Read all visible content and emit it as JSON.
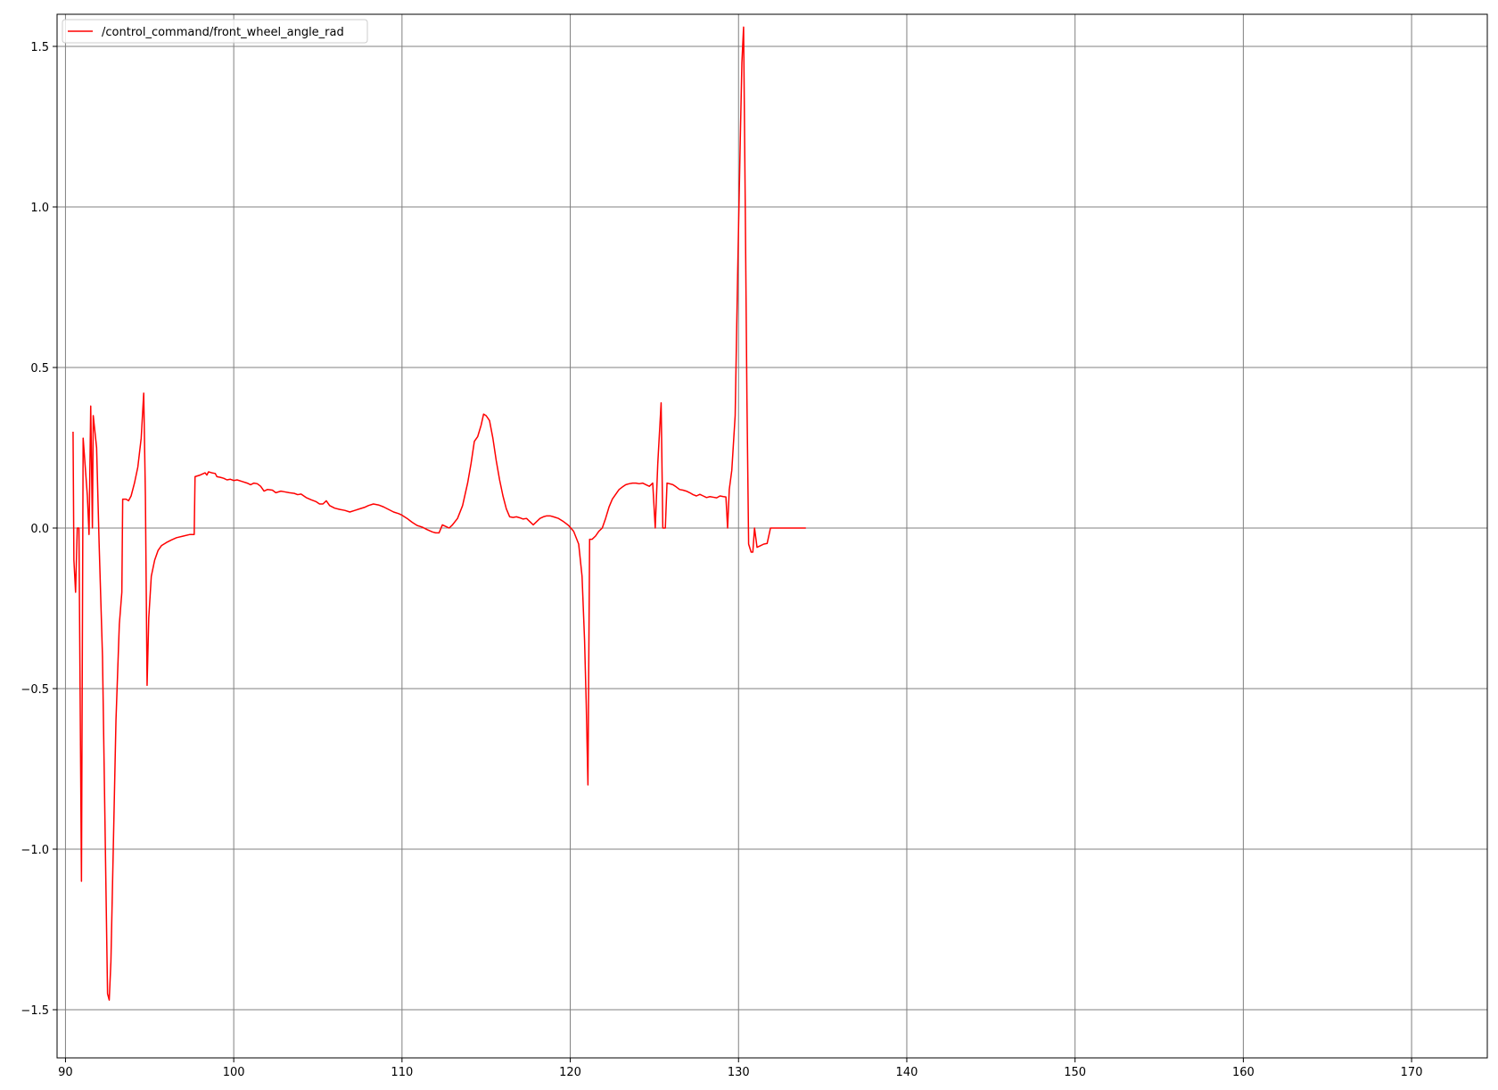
{
  "chart_data": {
    "type": "line",
    "title": "",
    "xlabel": "",
    "ylabel": "",
    "xlim": [
      89.5,
      174.5
    ],
    "ylim": [
      -1.65,
      1.6
    ],
    "xticks": [
      90,
      100,
      110,
      120,
      130,
      140,
      150,
      160,
      170
    ],
    "yticks": [
      -1.5,
      -1.0,
      -0.5,
      0.0,
      0.5,
      1.0,
      1.5
    ],
    "xtick_labels": [
      "90",
      "100",
      "110",
      "120",
      "130",
      "140",
      "150",
      "160",
      "170"
    ],
    "ytick_labels": [
      "−1.5",
      "−1.0",
      "−0.5",
      "0.0",
      "0.5",
      "1.0",
      "1.5"
    ],
    "grid": true,
    "legend_position": "top-left",
    "series": [
      {
        "name": "/control_command/front_wheel_angle_rad",
        "color": "#ff0000",
        "points": [
          [
            90.45,
            0.3
          ],
          [
            90.5,
            -0.1
          ],
          [
            90.6,
            -0.2
          ],
          [
            90.7,
            0.0
          ],
          [
            90.8,
            0.0
          ],
          [
            90.95,
            -1.1
          ],
          [
            91.05,
            0.28
          ],
          [
            91.3,
            0.1
          ],
          [
            91.4,
            -0.02
          ],
          [
            91.5,
            0.38
          ],
          [
            91.6,
            0.0
          ],
          [
            91.65,
            0.35
          ],
          [
            91.75,
            0.3
          ],
          [
            91.85,
            0.25
          ],
          [
            92.0,
            -0.05
          ],
          [
            92.2,
            -0.4
          ],
          [
            92.4,
            -1.1
          ],
          [
            92.5,
            -1.45
          ],
          [
            92.6,
            -1.47
          ],
          [
            92.7,
            -1.35
          ],
          [
            92.8,
            -1.1
          ],
          [
            93.0,
            -0.6
          ],
          [
            93.2,
            -0.3
          ],
          [
            93.35,
            -0.2
          ],
          [
            93.4,
            0.09
          ],
          [
            93.6,
            0.09
          ],
          [
            93.75,
            0.085
          ],
          [
            93.9,
            0.1
          ],
          [
            94.1,
            0.14
          ],
          [
            94.3,
            0.19
          ],
          [
            94.5,
            0.28
          ],
          [
            94.65,
            0.42
          ],
          [
            94.75,
            0.1
          ],
          [
            94.85,
            -0.49
          ],
          [
            94.95,
            -0.28
          ],
          [
            95.1,
            -0.15
          ],
          [
            95.3,
            -0.1
          ],
          [
            95.5,
            -0.07
          ],
          [
            95.7,
            -0.055
          ],
          [
            96.0,
            -0.045
          ],
          [
            96.3,
            -0.037
          ],
          [
            96.6,
            -0.03
          ],
          [
            97.0,
            -0.025
          ],
          [
            97.4,
            -0.02
          ],
          [
            97.65,
            -0.02
          ],
          [
            97.7,
            0.16
          ],
          [
            98.0,
            0.165
          ],
          [
            98.3,
            0.172
          ],
          [
            98.4,
            0.165
          ],
          [
            98.5,
            0.175
          ],
          [
            98.7,
            0.172
          ],
          [
            98.9,
            0.17
          ],
          [
            99.0,
            0.16
          ],
          [
            99.2,
            0.158
          ],
          [
            99.4,
            0.155
          ],
          [
            99.6,
            0.15
          ],
          [
            99.8,
            0.152
          ],
          [
            100.0,
            0.148
          ],
          [
            100.2,
            0.15
          ],
          [
            100.5,
            0.145
          ],
          [
            100.8,
            0.14
          ],
          [
            101.0,
            0.135
          ],
          [
            101.2,
            0.14
          ],
          [
            101.4,
            0.138
          ],
          [
            101.6,
            0.13
          ],
          [
            101.8,
            0.115
          ],
          [
            102.0,
            0.12
          ],
          [
            102.3,
            0.118
          ],
          [
            102.5,
            0.11
          ],
          [
            102.8,
            0.115
          ],
          [
            103.0,
            0.113
          ],
          [
            103.3,
            0.11
          ],
          [
            103.6,
            0.108
          ],
          [
            103.8,
            0.104
          ],
          [
            104.0,
            0.106
          ],
          [
            104.3,
            0.095
          ],
          [
            104.6,
            0.088
          ],
          [
            104.9,
            0.082
          ],
          [
            105.1,
            0.075
          ],
          [
            105.3,
            0.075
          ],
          [
            105.5,
            0.085
          ],
          [
            105.7,
            0.07
          ],
          [
            106.0,
            0.062
          ],
          [
            106.3,
            0.058
          ],
          [
            106.6,
            0.055
          ],
          [
            106.9,
            0.05
          ],
          [
            107.2,
            0.055
          ],
          [
            107.5,
            0.06
          ],
          [
            107.8,
            0.065
          ],
          [
            108.0,
            0.07
          ],
          [
            108.3,
            0.075
          ],
          [
            108.6,
            0.072
          ],
          [
            108.9,
            0.066
          ],
          [
            109.2,
            0.058
          ],
          [
            109.5,
            0.05
          ],
          [
            109.8,
            0.045
          ],
          [
            110.0,
            0.04
          ],
          [
            110.3,
            0.03
          ],
          [
            110.6,
            0.018
          ],
          [
            110.9,
            0.008
          ],
          [
            111.2,
            0.003
          ],
          [
            111.5,
            -0.005
          ],
          [
            111.8,
            -0.012
          ],
          [
            112.0,
            -0.015
          ],
          [
            112.2,
            -0.015
          ],
          [
            112.4,
            0.01
          ],
          [
            112.6,
            0.005
          ],
          [
            112.8,
            0.0
          ],
          [
            113.0,
            0.01
          ],
          [
            113.3,
            0.03
          ],
          [
            113.6,
            0.07
          ],
          [
            113.9,
            0.14
          ],
          [
            114.1,
            0.2
          ],
          [
            114.3,
            0.27
          ],
          [
            114.5,
            0.285
          ],
          [
            114.7,
            0.32
          ],
          [
            114.85,
            0.355
          ],
          [
            115.0,
            0.35
          ],
          [
            115.2,
            0.335
          ],
          [
            115.4,
            0.28
          ],
          [
            115.6,
            0.21
          ],
          [
            115.8,
            0.15
          ],
          [
            116.0,
            0.1
          ],
          [
            116.2,
            0.06
          ],
          [
            116.4,
            0.035
          ],
          [
            116.6,
            0.033
          ],
          [
            116.8,
            0.035
          ],
          [
            117.0,
            0.032
          ],
          [
            117.2,
            0.028
          ],
          [
            117.4,
            0.03
          ],
          [
            117.6,
            0.02
          ],
          [
            117.8,
            0.01
          ],
          [
            118.0,
            0.02
          ],
          [
            118.2,
            0.03
          ],
          [
            118.4,
            0.035
          ],
          [
            118.6,
            0.038
          ],
          [
            118.8,
            0.038
          ],
          [
            119.0,
            0.035
          ],
          [
            119.3,
            0.03
          ],
          [
            119.6,
            0.02
          ],
          [
            119.9,
            0.008
          ],
          [
            120.2,
            -0.01
          ],
          [
            120.5,
            -0.05
          ],
          [
            120.7,
            -0.15
          ],
          [
            120.85,
            -0.35
          ],
          [
            120.95,
            -0.55
          ],
          [
            121.05,
            -0.8
          ],
          [
            121.15,
            -0.035
          ],
          [
            121.3,
            -0.035
          ],
          [
            121.5,
            -0.025
          ],
          [
            121.7,
            -0.01
          ],
          [
            121.9,
            0.0
          ],
          [
            122.1,
            0.03
          ],
          [
            122.3,
            0.065
          ],
          [
            122.5,
            0.09
          ],
          [
            122.7,
            0.105
          ],
          [
            122.9,
            0.12
          ],
          [
            123.1,
            0.128
          ],
          [
            123.3,
            0.135
          ],
          [
            123.5,
            0.138
          ],
          [
            123.7,
            0.14
          ],
          [
            123.9,
            0.14
          ],
          [
            124.1,
            0.138
          ],
          [
            124.3,
            0.14
          ],
          [
            124.5,
            0.135
          ],
          [
            124.7,
            0.13
          ],
          [
            124.9,
            0.14
          ],
          [
            125.05,
            0.0
          ],
          [
            125.2,
            0.2
          ],
          [
            125.4,
            0.39
          ],
          [
            125.5,
            0.0
          ],
          [
            125.65,
            0.0
          ],
          [
            125.75,
            0.14
          ],
          [
            125.9,
            0.138
          ],
          [
            126.1,
            0.135
          ],
          [
            126.3,
            0.128
          ],
          [
            126.5,
            0.12
          ],
          [
            126.7,
            0.118
          ],
          [
            126.9,
            0.115
          ],
          [
            127.1,
            0.11
          ],
          [
            127.3,
            0.104
          ],
          [
            127.5,
            0.1
          ],
          [
            127.7,
            0.105
          ],
          [
            127.9,
            0.1
          ],
          [
            128.1,
            0.095
          ],
          [
            128.3,
            0.098
          ],
          [
            128.5,
            0.096
          ],
          [
            128.7,
            0.094
          ],
          [
            128.9,
            0.1
          ],
          [
            129.1,
            0.098
          ],
          [
            129.25,
            0.097
          ],
          [
            129.35,
            0.0
          ],
          [
            129.45,
            0.12
          ],
          [
            129.6,
            0.18
          ],
          [
            129.8,
            0.35
          ],
          [
            129.95,
            0.8
          ],
          [
            130.1,
            1.2
          ],
          [
            130.2,
            1.45
          ],
          [
            130.3,
            1.56
          ],
          [
            130.4,
            1.0
          ],
          [
            130.5,
            0.4
          ],
          [
            130.6,
            -0.05
          ],
          [
            130.75,
            -0.075
          ],
          [
            130.85,
            -0.075
          ],
          [
            130.95,
            0.0
          ],
          [
            131.1,
            -0.06
          ],
          [
            131.3,
            -0.055
          ],
          [
            131.5,
            -0.05
          ],
          [
            131.7,
            -0.048
          ],
          [
            131.9,
            0.0
          ],
          [
            132.3,
            0.0
          ],
          [
            132.8,
            0.0
          ],
          [
            133.3,
            0.0
          ],
          [
            133.8,
            0.0
          ],
          [
            134.0,
            0.0
          ]
        ]
      }
    ]
  }
}
